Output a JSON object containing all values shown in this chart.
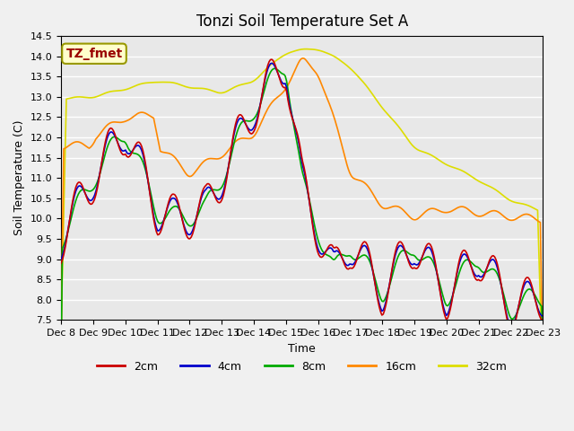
{
  "title": "Tonzi Soil Temperature Set A",
  "xlabel": "Time",
  "ylabel": "Soil Temperature (C)",
  "ylim": [
    7.5,
    14.5
  ],
  "annotation_text": "TZ_fmet",
  "legend_labels": [
    "2cm",
    "4cm",
    "8cm",
    "16cm",
    "32cm"
  ],
  "line_colors": {
    "2cm": "#cc0000",
    "4cm": "#0000cc",
    "8cm": "#00aa00",
    "16cm": "#ff8800",
    "32cm": "#dddd00"
  },
  "plot_bg_color": "#e8e8e8",
  "fig_bg_color": "#f0f0f0",
  "x_tick_labels": [
    "Dec 8",
    "Dec 9",
    "Dec 10",
    "Dec 11",
    "Dec 12",
    "Dec 13",
    "Dec 14",
    "Dec 15",
    "Dec 16",
    "Dec 17",
    "Dec 18",
    "Dec 19",
    "Dec 20",
    "Dec 21",
    "Dec 22",
    "Dec 23"
  ],
  "n_days": 15,
  "points_per_day": 24
}
